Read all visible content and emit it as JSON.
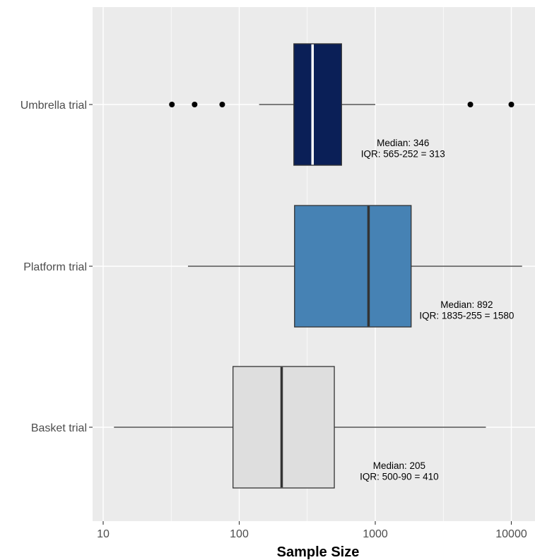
{
  "chart_data": {
    "type": "boxplot",
    "orientation": "horizontal",
    "xlabel": "Sample Size",
    "ylabel": "",
    "x_scale": "log10",
    "xlim": [
      8,
      13000
    ],
    "x_ticks": [
      10,
      100,
      1000,
      10000
    ],
    "x_tick_labels": [
      "10",
      "100",
      "1000",
      "10000"
    ],
    "grid": true,
    "background": "#ebebeb",
    "categories": [
      "Umbrella trial",
      "Platform trial",
      "Basket trial"
    ],
    "series": [
      {
        "name": "Umbrella trial",
        "color": "#0a1f57",
        "median_color": "#ffffff",
        "whisker_low": 140,
        "q1": 252,
        "median": 346,
        "q3": 565,
        "whisker_high": 1000,
        "outliers": [
          32,
          47,
          75,
          5000,
          10000
        ],
        "annotation": [
          "Median: 346",
          "IQR: 565-252 = 313"
        ],
        "annotation_x": 1600
      },
      {
        "name": "Platform trial",
        "color": "#4682b4",
        "median_color": "#333333",
        "whisker_low": 42,
        "q1": 255,
        "median": 892,
        "q3": 1835,
        "whisker_high": 12000,
        "outliers": [],
        "annotation": [
          "Median: 892",
          "IQR: 1835-255 = 1580"
        ],
        "annotation_x": 4700
      },
      {
        "name": "Basket trial",
        "color": "#dedede",
        "median_color": "#333333",
        "whisker_low": 12,
        "q1": 90,
        "median": 205,
        "q3": 500,
        "whisker_high": 6500,
        "outliers": [],
        "annotation": [
          "Median: 205",
          "IQR: 500-90 = 410"
        ],
        "annotation_x": 1500
      }
    ]
  }
}
